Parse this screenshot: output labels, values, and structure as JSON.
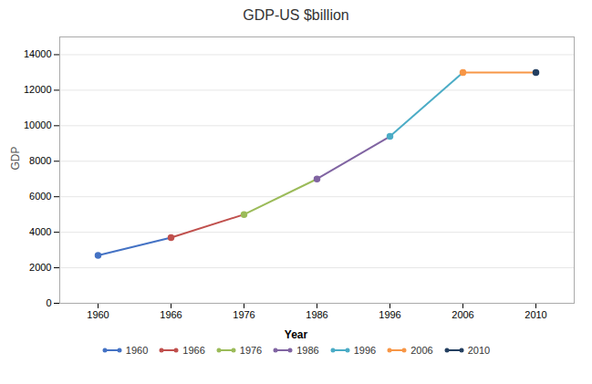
{
  "chart_data": {
    "type": "line",
    "title": "GDP-US $billion",
    "xlabel": "Year",
    "ylabel": "GDP",
    "categories": [
      "1960",
      "1966",
      "1976",
      "1986",
      "1996",
      "2006",
      "2010"
    ],
    "values": [
      2700,
      3700,
      5000,
      7000,
      9400,
      13000,
      13000
    ],
    "colors": [
      "#4472c4",
      "#c0504d",
      "#9bbb59",
      "#8064a2",
      "#4bacc6",
      "#f79646",
      "#243f60"
    ],
    "marker": "circle",
    "ylim": [
      0,
      15000
    ],
    "yticks": [
      0,
      2000,
      4000,
      6000,
      8000,
      10000,
      12000,
      14000
    ],
    "grid": true,
    "legend": "bottom"
  }
}
